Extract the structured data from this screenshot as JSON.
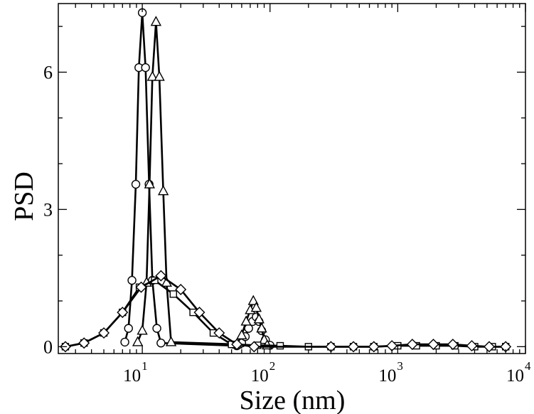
{
  "chart_data": {
    "type": "line",
    "xlabel": "Size (nm)",
    "ylabel": "PSD",
    "x_scale": "log",
    "xlim": [
      2.2,
      10000
    ],
    "ylim": [
      -0.15,
      7.5
    ],
    "x_ticks": [
      {
        "value": 10,
        "base": "10",
        "exp": "1"
      },
      {
        "value": 100,
        "base": "10",
        "exp": "2"
      },
      {
        "value": 1000,
        "base": "10",
        "exp": "3"
      },
      {
        "value": 10000,
        "base": "10",
        "exp": "4"
      }
    ],
    "y_ticks": [
      {
        "value": 0,
        "label": "0"
      },
      {
        "value": 3,
        "label": "3"
      },
      {
        "value": 6,
        "label": "6"
      }
    ],
    "grid": false,
    "series": [
      {
        "marker": "circle",
        "points": [
          [
            7.3,
            0.1
          ],
          [
            7.8,
            0.4
          ],
          [
            8.3,
            1.45
          ],
          [
            8.9,
            3.55
          ],
          [
            9.4,
            6.1
          ],
          [
            10.0,
            7.3
          ],
          [
            10.6,
            6.1
          ],
          [
            11.3,
            3.55
          ],
          [
            12.0,
            1.45
          ],
          [
            13.0,
            0.4
          ],
          [
            14.0,
            0.08
          ],
          [
            55,
            0.02
          ],
          [
            60,
            0.08
          ],
          [
            64,
            0.22
          ],
          [
            68,
            0.4
          ],
          [
            73,
            0.55
          ],
          [
            78,
            0.65
          ],
          [
            82,
            0.55
          ],
          [
            86,
            0.35
          ],
          [
            92,
            0.15
          ],
          [
            100,
            0.03
          ]
        ]
      },
      {
        "marker": "triangle",
        "points": [
          [
            9.2,
            0.1
          ],
          [
            10.0,
            0.35
          ],
          [
            10.8,
            1.4
          ],
          [
            11.4,
            3.55
          ],
          [
            12.0,
            5.9
          ],
          [
            12.8,
            7.1
          ],
          [
            13.6,
            5.9
          ],
          [
            14.6,
            3.4
          ],
          [
            15.5,
            1.4
          ],
          [
            16.8,
            0.1
          ],
          [
            55,
            0.05
          ],
          [
            60,
            0.25
          ],
          [
            65,
            0.55
          ],
          [
            70,
            0.8
          ],
          [
            74,
            1.0
          ],
          [
            78,
            0.85
          ],
          [
            82,
            0.6
          ],
          [
            86,
            0.4
          ],
          [
            90,
            0.15
          ],
          [
            95,
            0.03
          ]
        ]
      },
      {
        "marker": "square",
        "points": [
          [
            2.5,
            0.0
          ],
          [
            3.5,
            0.08
          ],
          [
            5.0,
            0.3
          ],
          [
            7.0,
            0.75
          ],
          [
            9.5,
            1.3
          ],
          [
            12.5,
            1.45
          ],
          [
            17.5,
            1.15
          ],
          [
            25,
            0.75
          ],
          [
            36,
            0.3
          ],
          [
            50,
            0.05
          ],
          [
            80,
            0.03
          ],
          [
            120,
            0.02
          ],
          [
            200,
            0.0
          ],
          [
            300,
            0.0
          ],
          [
            450,
            0.0
          ],
          [
            650,
            0.0
          ],
          [
            1000,
            0.02
          ],
          [
            1400,
            0.02
          ],
          [
            2000,
            0.02
          ],
          [
            2800,
            0.02
          ],
          [
            4000,
            0.0
          ],
          [
            5500,
            0.0
          ],
          [
            7000,
            0.0
          ]
        ]
      },
      {
        "marker": "diamond",
        "points": [
          [
            2.5,
            0.0
          ],
          [
            3.5,
            0.08
          ],
          [
            5.0,
            0.3
          ],
          [
            7.0,
            0.75
          ],
          [
            9.8,
            1.3
          ],
          [
            14.0,
            1.55
          ],
          [
            20,
            1.25
          ],
          [
            28,
            0.75
          ],
          [
            40,
            0.3
          ],
          [
            55,
            0.05
          ],
          [
            75,
            0.0
          ],
          [
            300,
            0.0
          ],
          [
            450,
            0.0
          ],
          [
            650,
            0.0
          ],
          [
            900,
            0.02
          ],
          [
            1300,
            0.05
          ],
          [
            1900,
            0.05
          ],
          [
            2700,
            0.05
          ],
          [
            3800,
            0.02
          ],
          [
            5200,
            0.0
          ],
          [
            7000,
            0.0
          ]
        ]
      }
    ]
  }
}
